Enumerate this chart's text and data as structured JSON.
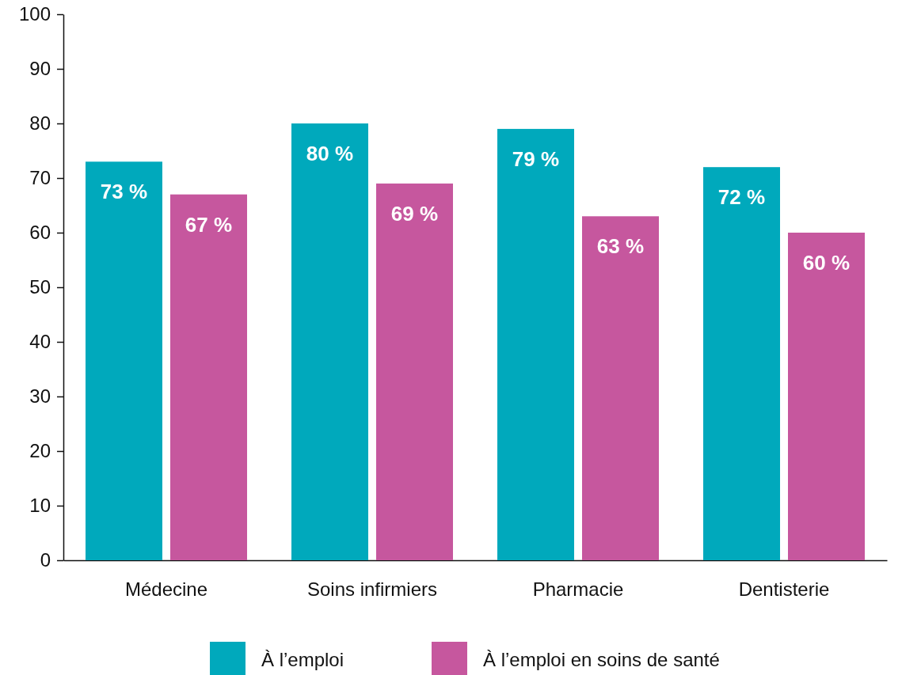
{
  "chart_data": {
    "type": "bar",
    "categories": [
      "Médecine",
      "Soins infirmiers",
      "Pharmacie",
      "Dentisterie"
    ],
    "series": [
      {
        "name": "À l’emploi",
        "color": "#00a9bc",
        "values": [
          73,
          80,
          79,
          72
        ],
        "value_labels": [
          "73 %",
          "80 %",
          "79 %",
          "72 %"
        ]
      },
      {
        "name": "À l’emploi en soins de santé",
        "color": "#c6579e",
        "values": [
          67,
          69,
          63,
          60
        ],
        "value_labels": [
          "67 %",
          "69 %",
          "63 %",
          "60 %"
        ]
      }
    ],
    "ylim": [
      0,
      100
    ],
    "yticks": [
      0,
      10,
      20,
      30,
      40,
      50,
      60,
      70,
      80,
      90,
      100
    ],
    "grid": false,
    "legend": "bottom"
  }
}
